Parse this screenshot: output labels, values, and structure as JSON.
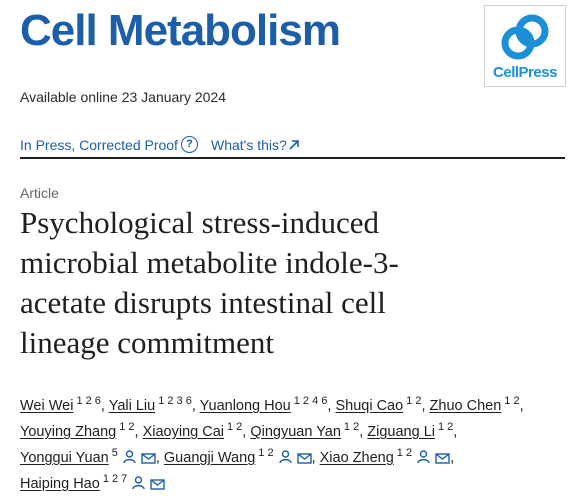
{
  "journal": {
    "title": "Cell Metabolism",
    "publisher_logo": "CellPress",
    "logo_color": "#1c8fd6"
  },
  "available": "Available online 23 January 2024",
  "status": {
    "label": "In Press, Corrected Proof",
    "help_icon": "?",
    "whats_this": "What's this?"
  },
  "article": {
    "type": "Article",
    "title_lines": [
      "Psychological stress-induced",
      "microbial metabolite indole-3-",
      "acetate disrupts intestinal cell",
      "lineage commitment"
    ]
  },
  "authors": [
    {
      "name": "Wei Wei",
      "aff": "1 2 6",
      "sep": ", "
    },
    {
      "name": "Yali Liu",
      "aff": "1 2 3 6",
      "sep": ", "
    },
    {
      "name": "Yuanlong Hou",
      "aff": "1 2 4 6",
      "sep": ", "
    },
    {
      "name": "Shuqi Cao",
      "aff": "1 2",
      "sep": ", "
    },
    {
      "name": "Zhuo Chen",
      "aff": "1 2",
      "sep": ","
    },
    {
      "name": "Youying Zhang",
      "aff": "1 2",
      "sep": ", "
    },
    {
      "name": "Xiaoying Cai",
      "aff": "1 2",
      "sep": ", "
    },
    {
      "name": "Qingyuan Yan",
      "aff": "1 2",
      "sep": ", "
    },
    {
      "name": "Ziguang Li",
      "aff": "1 2",
      "sep": ","
    },
    {
      "name": "Yonggui Yuan",
      "aff": "5",
      "corresponding": true,
      "sep": ", "
    },
    {
      "name": "Guangji Wang",
      "aff": "1 2",
      "corresponding": true,
      "sep": ", "
    },
    {
      "name": "Xiao Zheng",
      "aff": "1 2",
      "corresponding": true,
      "sep": ","
    },
    {
      "name": "Haiping Hao",
      "aff": "1 2 7",
      "corresponding": true,
      "sep": ""
    }
  ],
  "author_lines": [
    [
      0,
      1,
      2,
      3,
      4
    ],
    [
      5,
      6,
      7,
      8
    ],
    [
      9,
      10,
      11
    ],
    [
      12
    ]
  ],
  "colors": {
    "accent": "#1c5fa8",
    "text": "#1f1f1f"
  },
  "icons": [
    "help-icon",
    "external-arrow-icon",
    "person-icon",
    "mail-icon"
  ]
}
